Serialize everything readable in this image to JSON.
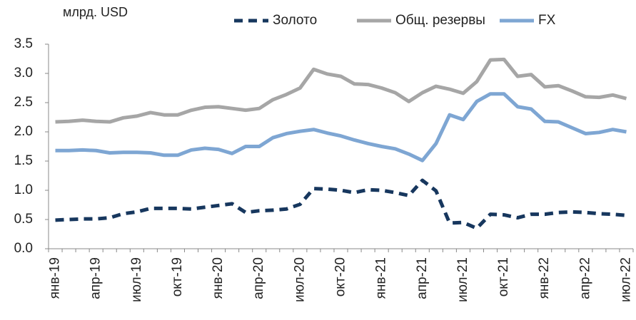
{
  "chart_data": {
    "type": "line",
    "y_label": "млрд. USD",
    "categories": [
      "янв-19",
      null,
      null,
      "апр-19",
      null,
      null,
      "июл-19",
      null,
      null,
      "окт-19",
      null,
      null,
      "янв-20",
      null,
      null,
      "апр-20",
      null,
      null,
      "июл-20",
      null,
      null,
      "окт-20",
      null,
      null,
      "янв-21",
      null,
      null,
      "апр-21",
      null,
      null,
      "июл-21",
      null,
      null,
      "окт-21",
      null,
      null,
      "янв-22",
      null,
      null,
      "апр-22",
      null,
      null,
      "июл-22"
    ],
    "series": [
      {
        "name": "Золото",
        "color": "#17375e",
        "dash": true,
        "values": [
          0.49,
          0.5,
          0.51,
          0.51,
          0.53,
          0.6,
          0.63,
          0.69,
          0.69,
          0.69,
          0.68,
          0.71,
          0.74,
          0.77,
          0.62,
          0.65,
          0.66,
          0.68,
          0.76,
          1.03,
          1.02,
          1.0,
          0.96,
          1.01,
          1.0,
          0.96,
          0.91,
          1.17,
          0.99,
          0.44,
          0.45,
          0.35,
          0.59,
          0.58,
          0.53,
          0.59,
          0.59,
          0.62,
          0.63,
          0.62,
          0.6,
          0.59,
          0.57
        ]
      },
      {
        "name": "Общ. резервы",
        "color": "#a6a6a6",
        "dash": false,
        "values": [
          2.17,
          2.18,
          2.2,
          2.18,
          2.17,
          2.24,
          2.27,
          2.33,
          2.29,
          2.29,
          2.37,
          2.42,
          2.43,
          2.4,
          2.37,
          2.4,
          2.55,
          2.64,
          2.75,
          3.07,
          2.99,
          2.95,
          2.82,
          2.81,
          2.75,
          2.67,
          2.52,
          2.67,
          2.78,
          2.73,
          2.66,
          2.86,
          3.23,
          3.24,
          2.95,
          2.98,
          2.77,
          2.79,
          2.7,
          2.6,
          2.59,
          2.63,
          2.57
        ]
      },
      {
        "name": "FX",
        "color": "#7ea6d3",
        "dash": false,
        "values": [
          1.68,
          1.68,
          1.69,
          1.68,
          1.64,
          1.65,
          1.65,
          1.64,
          1.6,
          1.6,
          1.69,
          1.72,
          1.7,
          1.63,
          1.75,
          1.75,
          1.9,
          1.97,
          2.01,
          2.04,
          1.98,
          1.93,
          1.86,
          1.8,
          1.75,
          1.71,
          1.62,
          1.51,
          1.8,
          2.29,
          2.21,
          2.52,
          2.65,
          2.65,
          2.43,
          2.39,
          2.18,
          2.17,
          2.07,
          1.97,
          1.99,
          2.04,
          2.0
        ]
      }
    ],
    "ylim": [
      0,
      3.5
    ],
    "yticks": [
      {
        "value": 0,
        "label": "0.0"
      },
      0.5,
      {
        "value": 1,
        "label": "1.0"
      },
      1.5,
      {
        "value": 2,
        "label": "2.0"
      },
      2.5,
      {
        "value": 3,
        "label": "3.0"
      },
      3.5
    ],
    "grid": false,
    "legend": "top"
  }
}
